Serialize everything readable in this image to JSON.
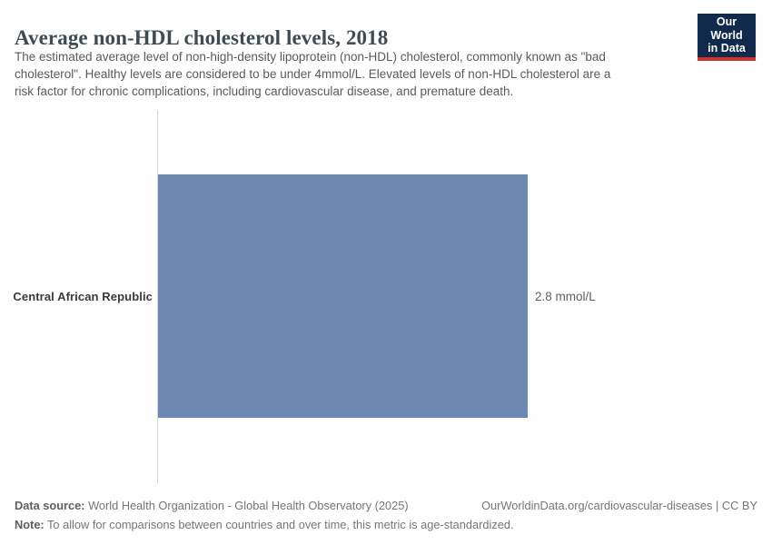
{
  "header": {
    "title": "Average non-HDL cholesterol levels, 2018",
    "subtitle_lines": [
      "The estimated average level of non-high-density lipoprotein (non-HDL) cholesterol, commonly known as \"bad",
      "cholesterol\". Healthy levels are considered to be under 4mmol/L. Elevated levels of non-HDL cholesterol are a",
      "risk factor for chronic complications, including cardiovascular disease, and premature death."
    ],
    "logo": {
      "line1": "Our World",
      "line2": "in Data"
    }
  },
  "chart_data": {
    "type": "bar",
    "orientation": "horizontal",
    "categories": [
      "Central African Republic"
    ],
    "values": [
      2.8
    ],
    "unit": "mmol/L",
    "value_labels": [
      "2.8 mmol/L"
    ],
    "title": "Average non-HDL cholesterol levels, 2018",
    "xlabel": "",
    "ylabel": "",
    "xlim": [
      0,
      2.8
    ],
    "grid": false,
    "legend": false,
    "bar_color": "#6d88b1"
  },
  "footer": {
    "datasource_label": "Data source:",
    "datasource_text": " World Health Organization - Global Health Observatory (2025)",
    "citation": "OurWorldinData.org/cardiovascular-diseases | CC BY",
    "note_label": "Note:",
    "note_text": " To allow for comparisons between countries and over time, this metric is age-standardized."
  },
  "colors": {
    "bar": "#6d88b1",
    "axis_line": "#d7d7d7",
    "logo_navy": "#102a4e",
    "logo_red": "#d0342c",
    "title_text": "#3e4c54",
    "subtitle_text": "#5a5a5a",
    "footer_text": "#757575"
  }
}
